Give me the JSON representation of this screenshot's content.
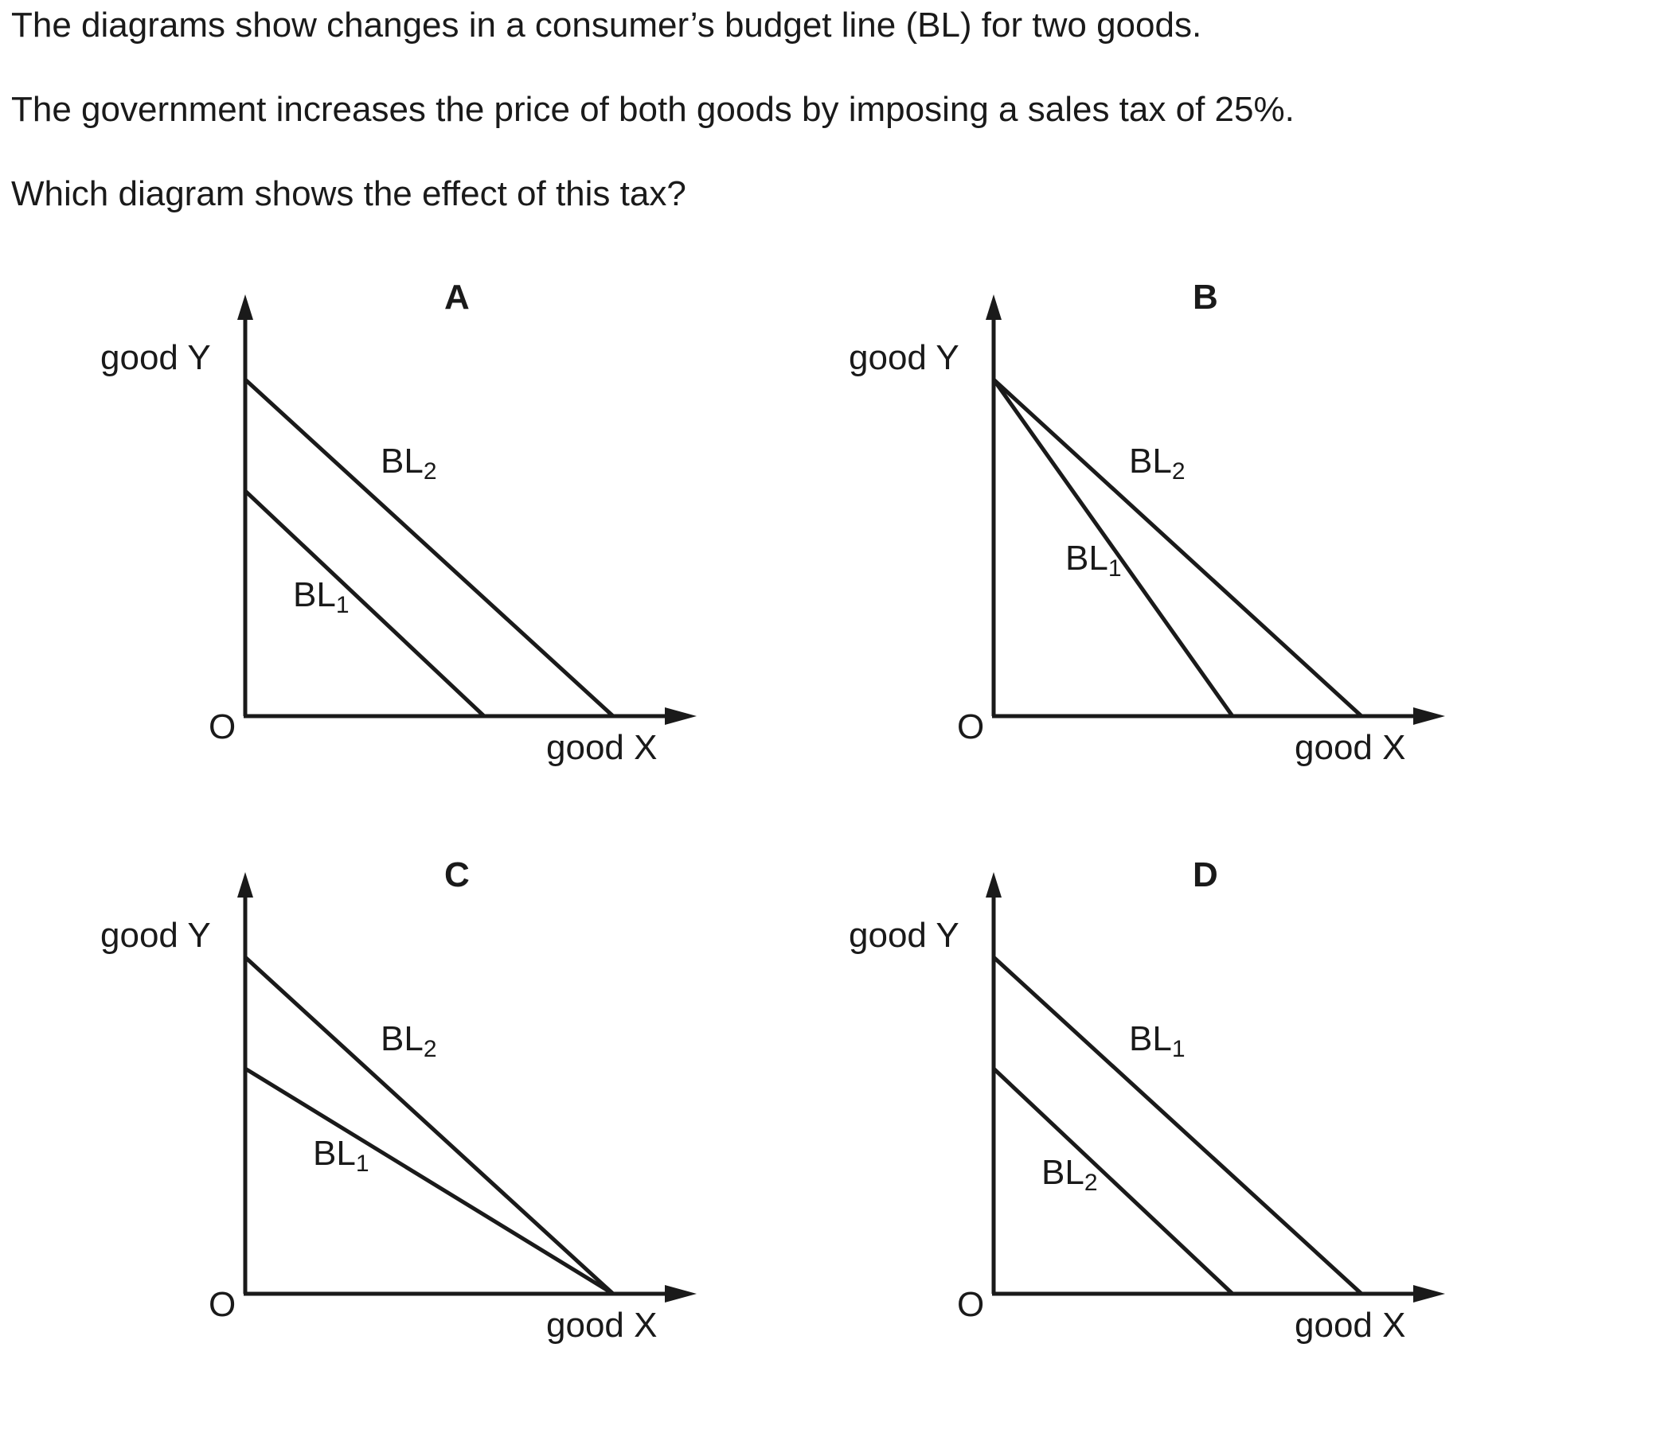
{
  "question": {
    "line1": "The diagrams show changes in a consumer’s budget line (BL) for two goods.",
    "line2": "The government increases the price of both goods by imposing a sales tax of 25%.",
    "line3": "Which diagram shows the effect of this tax?"
  },
  "axis_labels": {
    "y": "good Y",
    "x": "good X",
    "origin": "O"
  },
  "line_label_base": "BL",
  "diagrams": {
    "A": {
      "letter": "A",
      "line1_sub": "1",
      "line2_sub": "2"
    },
    "B": {
      "letter": "B",
      "line1_sub": "1",
      "line2_sub": "2"
    },
    "C": {
      "letter": "C",
      "line1_sub": "1",
      "line2_sub": "2"
    },
    "D": {
      "letter": "D",
      "line1_sub": "1",
      "line2_sub": "2"
    }
  },
  "colors": {
    "ink": "#1a1a1a",
    "background": "#ffffff"
  }
}
